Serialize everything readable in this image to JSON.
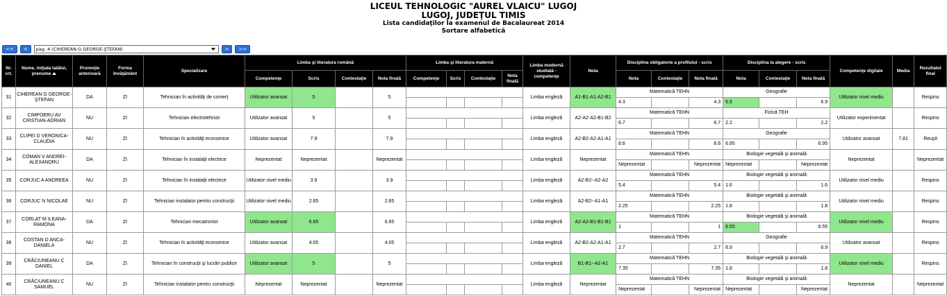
{
  "header": {
    "title": "LICEUL TEHNOLOGIC \"AUREL VLAICU\" LUGOJ",
    "subtitle": "LUGOJ, JUDEŢUL TIMIS",
    "list": "Lista candidaţilor la examenul de Bacalaureat 2014",
    "sort": "Sortare alfabetică"
  },
  "nav": {
    "first": "<<",
    "prev": "<",
    "page": "pag. 4 (CIHEREAN G GEORGE-ŞTEFAN)",
    "next": ">",
    "last": ">>"
  },
  "columns": {
    "nr": "Nr. crt.",
    "nume": "Nume, iniţiala tatălui, prenume",
    "promotie": "Promoţie anterioară",
    "forma": "Forma învăţământ",
    "specializare": "Specializare",
    "romana": "Limba şi literatura română",
    "materna": "Limba şi literatura maternă",
    "moderna": "Limba modernă studiată - competenţe",
    "nota": "Nota",
    "obligatorie": "Disciplina obligatorie a profilului - scris",
    "alegere": "Disciplina la alegere - scris",
    "digitale": "Competenţe digitale",
    "media": "Media",
    "rezultat": "Rezultatul final",
    "competente": "Competenţe",
    "scris": "Scris",
    "contestatie": "Contestaţie",
    "nota_finala": "Nota finală",
    "nota_sub": "Nota"
  },
  "highlight_color": "#90e68c",
  "rows": [
    {
      "nr": "31",
      "nume": "CIHEREAN G GEORGE-ŞTEFAN",
      "promotie": "DA",
      "forma": "ZI",
      "specializare": "Tehnician în activităţi de comerţ",
      "rom_comp": "Utilizator avansat",
      "rom_scris": "5",
      "rom_final": "5",
      "moderna": "Limba engleză",
      "nota": "A1-B1-A1-A2-B1",
      "obl": "Matematică TEHN",
      "obl_nota": "4.3",
      "obl_final": "4.3",
      "alg": "Geografie",
      "alg_nota": "6.9",
      "alg_final": "6.9",
      "dig": "Utilizator nivel mediu",
      "rezultat": "Respins",
      "hl": [
        "rom_comp",
        "rom_scris",
        "nota",
        "alg_nota",
        "dig"
      ]
    },
    {
      "nr": "32",
      "nume": "CIMPOERU AV CRISTIAN-ADRIAN",
      "promotie": "NU",
      "forma": "ZI",
      "specializare": "Tehnician electrotehnist",
      "rom_comp": "Utilizator avansat",
      "rom_scris": "5",
      "rom_final": "5",
      "moderna": "Limba engleză",
      "nota": "A2-A2-A2-B1-B2",
      "obl": "Matematică TEHN",
      "obl_nota": "6.7",
      "obl_final": "6.7",
      "alg": "Fizică TEH",
      "alg_nota": "2.2",
      "alg_final": "2.2",
      "dig": "Utilizator experimentat",
      "rezultat": "Respins"
    },
    {
      "nr": "33",
      "nume": "CLIPEI D VERONICA-CLAUDIA",
      "promotie": "NU",
      "forma": "ZI",
      "specializare": "Tehnician în activităţi economice",
      "rom_comp": "Utilizator avansat",
      "rom_scris": "7.9",
      "rom_final": "7.9",
      "moderna": "Limba engleză",
      "nota": "A2-B2-A2-A1-A1",
      "obl": "Matematică TEHN",
      "obl_nota": "8.6",
      "obl_final": "8.6",
      "alg": "Geografie",
      "alg_nota": "6.95",
      "alg_final": "6.95",
      "dig": "Utilizator avansat",
      "media": "7.81",
      "rezultat": "Reuşit"
    },
    {
      "nr": "34",
      "nume": "COMAN V ANDREI-ALEXANDRU",
      "promotie": "DA",
      "forma": "ZI",
      "specializare": "Tehnician în instalaţii electrice",
      "rom_comp": "Neprezentat",
      "rom_scris": "Neprezentat",
      "rom_final": "Neprezentat",
      "moderna": "Limba engleză",
      "nota": "Neprezentat",
      "obl": "Matematică TEHN",
      "obl_nota": "Neprezentat",
      "obl_final": "Neprezentat",
      "alg": "Biologie vegetală şi animală",
      "alg_nota": "Neprezentat",
      "alg_final": "Neprezentat",
      "dig": "Neprezentat",
      "rezultat": "Neprezentat"
    },
    {
      "nr": "35",
      "nume": "CORJUC A ANDREEA",
      "promotie": "NU",
      "forma": "ZI",
      "specializare": "Tehnician în instalaţii electrice",
      "rom_comp": "Utilizator nivel mediu",
      "rom_scris": "3.9",
      "rom_final": "3.9",
      "moderna": "Limba engleză",
      "nota": "A2-B2--A2-A2",
      "obl": "Matematică TEHN",
      "obl_nota": "5.4",
      "obl_final": "5.4",
      "alg": "Biologie vegetală şi animală",
      "alg_nota": "1.6",
      "alg_final": "1.6",
      "dig": "Utilizator nivel mediu",
      "rezultat": "Respins"
    },
    {
      "nr": "36",
      "nume": "CORJUC N NICOLAE",
      "promotie": "NU",
      "forma": "ZI",
      "specializare": "Tehnician instalator pentru construcţii",
      "rom_comp": "Utilizator nivel mediu",
      "rom_scris": "2.65",
      "rom_final": "2.65",
      "moderna": "Limba engleză",
      "nota": "A2-B2--A1-A1",
      "obl": "Matematică TEHN",
      "obl_nota": "2.25",
      "obl_final": "2.25",
      "alg": "Biologie vegetală şi animală",
      "alg_nota": "1.8",
      "alg_final": "1.8",
      "dig": "Utilizator nivel mediu",
      "rezultat": "Respins"
    },
    {
      "nr": "37",
      "nume": "CORLAT M ILEANA-RAMONA",
      "promotie": "DA",
      "forma": "ZI",
      "specializare": "Tehnician mecatronist",
      "rom_comp": "Utilizator avansat",
      "rom_scris": "6.65",
      "rom_final": "6.65",
      "moderna": "Limba engleză",
      "nota": "A2-A2-B1-B1-B1",
      "obl": "Matematică TEHN",
      "obl_nota": "1",
      "obl_final": "1",
      "alg": "Biologie vegetală şi animală",
      "alg_nota": "6.55",
      "alg_final": "6.55",
      "dig": "Utilizator nivel mediu",
      "rezultat": "Respins",
      "hl": [
        "rom_comp",
        "rom_scris",
        "nota",
        "alg_nota",
        "dig"
      ]
    },
    {
      "nr": "38",
      "nume": "COSTAN D ANCA-DANIELA",
      "promotie": "NU",
      "forma": "ZI",
      "specializare": "Tehnician în activităţi economice",
      "rom_comp": "Utilizator avansat",
      "rom_scris": "4.05",
      "rom_final": "4.05",
      "moderna": "Limba engleză",
      "nota": "A2-B2-A2-A1-A1",
      "obl": "Matematică TEHN",
      "obl_nota": "2.7",
      "obl_final": "2.7",
      "alg": "Geografie",
      "alg_nota": "6.9",
      "alg_final": "6.9",
      "dig": "Utilizator avansat",
      "rezultat": "Respins"
    },
    {
      "nr": "39",
      "nume": "CRĂCIUNEANU C DANIEL",
      "promotie": "DA",
      "forma": "ZI",
      "specializare": "Tehnician în construcţii şi lucrări publice",
      "rom_comp": "Utilizator avansat",
      "rom_scris": "5",
      "rom_final": "5",
      "moderna": "Limba engleză",
      "nota": "B1-B1--A2-A1",
      "obl": "Matematică TEHN",
      "obl_nota": "7.35",
      "obl_final": "7.35",
      "alg": "Biologie vegetală şi animală",
      "alg_nota": "1.8",
      "alg_final": "1.8",
      "dig": "Utilizator nivel mediu",
      "rezultat": "Respins",
      "hl": [
        "rom_comp",
        "rom_scris",
        "nota",
        "dig"
      ]
    },
    {
      "nr": "40",
      "nume": "CRĂCIUNEANU C SAMUEL",
      "promotie": "NU",
      "forma": "ZI",
      "specializare": "Tehnician instalator pentru construcţii",
      "rom_comp": "Neprezentat",
      "rom_scris": "Neprezentat",
      "rom_final": "Neprezentat",
      "moderna": "Limba engleză",
      "nota": "Neprezentat",
      "obl": "Matematică TEHN",
      "obl_nota": "Neprezentat",
      "obl_final": "Neprezentat",
      "alg": "Biologie vegetală şi animală",
      "alg_nota": "Neprezentat",
      "alg_final": "Neprezentat",
      "dig": "Neprezentat",
      "rezultat": "Neprezentat"
    }
  ]
}
